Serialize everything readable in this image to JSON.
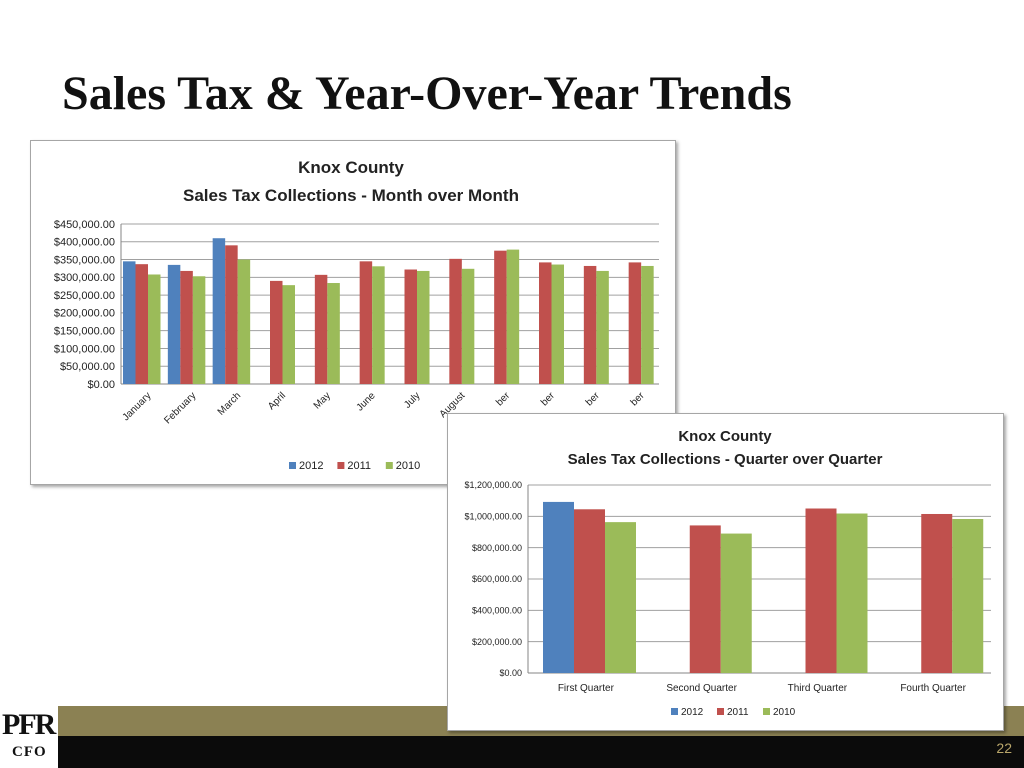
{
  "slide": {
    "title": "Sales Tax & Year-Over-Year Trends",
    "page_number": "22",
    "logo": {
      "top": "PFR",
      "bottom": "CFO"
    }
  },
  "colors": {
    "2012": "#4f81bd",
    "2011": "#c0504d",
    "2010": "#9bbb59"
  },
  "chart_data": [
    {
      "type": "bar",
      "title": "Knox County",
      "subtitle": "Sales Tax Collections - Month over Month",
      "xlabel": "",
      "ylabel": "",
      "ylim": [
        0,
        450000
      ],
      "y_ticks": [
        "$0.00",
        "$50,000.00",
        "$100,000.00",
        "$150,000.00",
        "$200,000.00",
        "$250,000.00",
        "$300,000.00",
        "$350,000.00",
        "$400,000.00",
        "$450,000.00"
      ],
      "grid": true,
      "legend": "bottom",
      "categories": [
        "January",
        "February",
        "March",
        "April",
        "May",
        "June",
        "July",
        "August",
        "ber",
        "ber",
        "ber",
        "ber"
      ],
      "series": [
        {
          "name": "2012",
          "values": [
            345000,
            335000,
            410000,
            null,
            null,
            null,
            null,
            null,
            null,
            null,
            null,
            null
          ]
        },
        {
          "name": "2011",
          "values": [
            337000,
            318000,
            390000,
            290000,
            307000,
            345000,
            322000,
            352000,
            375000,
            342000,
            332000,
            342000
          ]
        },
        {
          "name": "2010",
          "values": [
            308000,
            303000,
            350000,
            278000,
            284000,
            331000,
            318000,
            324000,
            378000,
            336000,
            318000,
            332000
          ]
        }
      ]
    },
    {
      "type": "bar",
      "title": "Knox County",
      "subtitle": "Sales Tax Collections - Quarter over Quarter",
      "xlabel": "",
      "ylabel": "",
      "ylim": [
        0,
        1200000
      ],
      "y_ticks": [
        "$0.00",
        "$200,000.00",
        "$400,000.00",
        "$600,000.00",
        "$800,000.00",
        "$1,000,000.00",
        "$1,200,000.00"
      ],
      "grid": true,
      "legend": "bottom",
      "categories": [
        "First Quarter",
        "Second Quarter",
        "Third Quarter",
        "Fourth Quarter"
      ],
      "series": [
        {
          "name": "2012",
          "values": [
            1092000,
            null,
            null,
            null
          ]
        },
        {
          "name": "2011",
          "values": [
            1045000,
            942000,
            1050000,
            1015000
          ]
        },
        {
          "name": "2010",
          "values": [
            963000,
            890000,
            1018000,
            983000
          ]
        }
      ]
    }
  ]
}
